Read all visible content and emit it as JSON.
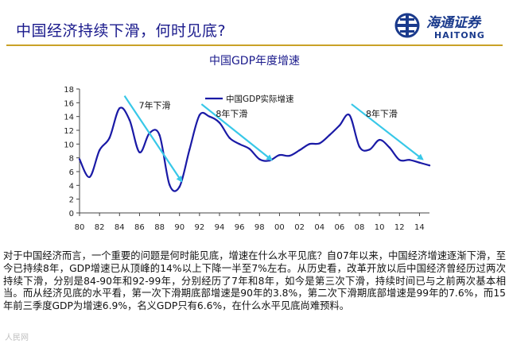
{
  "header": {
    "title": "中国经济持续下滑，何时见底?",
    "logo_cn": "海通证券",
    "logo_en": "HAITONG",
    "accent_color": "#c9a227",
    "title_color": "#1a1a8c"
  },
  "chart_data": {
    "type": "line",
    "title": "中国GDP年度增速",
    "xlabel": "",
    "ylabel": "",
    "ylim": [
      0,
      18
    ],
    "yticks": [
      0,
      2,
      4,
      6,
      8,
      10,
      12,
      14,
      16,
      18
    ],
    "xlim": [
      1980,
      2015
    ],
    "xtick_labels": [
      "80",
      "82",
      "84",
      "86",
      "88",
      "90",
      "92",
      "94",
      "96",
      "98",
      "00",
      "02",
      "04",
      "06",
      "08",
      "10",
      "12",
      "14"
    ],
    "legend": {
      "label": "中国GDP实际增速",
      "placement": "top-left"
    },
    "series": [
      {
        "name": "中国GDP实际增速",
        "color": "#1a1aa6",
        "x": [
          1980,
          1981,
          1982,
          1983,
          1984,
          1985,
          1986,
          1987,
          1988,
          1989,
          1990,
          1991,
          1992,
          1993,
          1994,
          1995,
          1996,
          1997,
          1998,
          1999,
          2000,
          2001,
          2002,
          2003,
          2004,
          2005,
          2006,
          2007,
          2008,
          2009,
          2010,
          2011,
          2012,
          2013,
          2014,
          2015
        ],
        "values": [
          7.8,
          5.2,
          9.1,
          10.9,
          15.2,
          13.5,
          8.8,
          11.6,
          11.3,
          4.1,
          3.8,
          9.2,
          14.2,
          14.0,
          13.1,
          10.9,
          10.0,
          9.3,
          7.8,
          7.6,
          8.4,
          8.3,
          9.1,
          10.0,
          10.1,
          11.3,
          12.7,
          14.2,
          9.6,
          9.2,
          10.6,
          9.5,
          7.7,
          7.7,
          7.3,
          6.9
        ]
      }
    ],
    "annotations": [
      {
        "label": "7年下滑",
        "from": [
          1984.5,
          17
        ],
        "to": [
          1990.2,
          4.6
        ]
      },
      {
        "label": "8年下滑",
        "from": [
          1992.2,
          15.8
        ],
        "to": [
          1999.2,
          7.7
        ]
      },
      {
        "label": "8年下滑",
        "from": [
          2007.2,
          15.8
        ],
        "to": [
          2014.3,
          7.8
        ]
      }
    ],
    "arrow_color": "#38c8e8"
  },
  "paragraph": "对于中国经济而言，一个重要的问题是何时能见底，增速在什么水平见底？自07年以来，中国经济增速逐渐下滑，至今已持续8年，GDP增速已从顶峰的14%以上下降一半至7%左右。从历史看，改革开放以后中国经济曾经历过两次持续下滑，分别是84-90年和92-99年，分别经历了7年和8年，如今是第三次下滑，持续时间已与之前两次基本相当。而从经济见底的水平看，第一次下滑期底部增速是90年的3.8%，第二次下滑期底部增速是99年的7.6%，而15年前三季度GDP为增速6.9%，名义GDP只有6.6%，在什么水平见底尚难预料。",
  "watermark": "人民网"
}
